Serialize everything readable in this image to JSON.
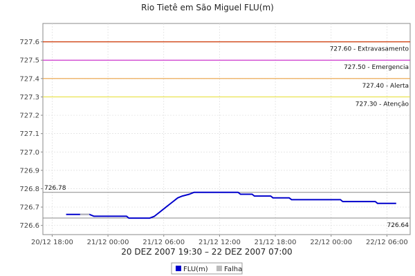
{
  "chart_data": {
    "type": "line",
    "title": "Rio Tietê em São Miguel FLU(m)",
    "xlabel": "20 DEZ 2007 19:30 – 22 DEZ 2007 07:00",
    "ylabel": "",
    "ylim": [
      726.55,
      727.7
    ],
    "xlim": [
      "2007-12-20T17:00",
      "2007-12-22T08:30"
    ],
    "x_ticks": [
      {
        "t": "2007-12-20T18:00",
        "label": "20/12 18:00"
      },
      {
        "t": "2007-12-21T00:00",
        "label": "21/12 00:00"
      },
      {
        "t": "2007-12-21T06:00",
        "label": "21/12 06:00"
      },
      {
        "t": "2007-12-21T12:00",
        "label": "21/12 12:00"
      },
      {
        "t": "2007-12-21T18:00",
        "label": "21/12 18:00"
      },
      {
        "t": "2007-12-22T00:00",
        "label": "22/12 00:00"
      },
      {
        "t": "2007-12-22T06:00",
        "label": "22/12 06:00"
      }
    ],
    "y_ticks": [
      726.6,
      726.7,
      726.8,
      726.9,
      727.0,
      727.1,
      727.2,
      727.3,
      727.4,
      727.5,
      727.6
    ],
    "y_tick_labels": [
      "726.6",
      "726.7",
      "726.8",
      "726.9",
      "727.0",
      "727.1",
      "727.2",
      "727.3",
      "727.4",
      "727.5",
      "727.6"
    ],
    "grid": true,
    "thresholds": [
      {
        "value": 727.6,
        "label": "727.60 - Extravasamento",
        "color": "#cc3300"
      },
      {
        "value": 727.5,
        "label": "727.50 - Emergencia",
        "color": "#cc33cc"
      },
      {
        "value": 727.4,
        "label": "727.40 - Alerta",
        "color": "#e8a040"
      },
      {
        "value": 727.3,
        "label": "727.30 - Atenção",
        "color": "#e8e040"
      }
    ],
    "extremes": [
      {
        "value": 726.78,
        "label": "726.78",
        "color": "#888888",
        "label_pos": "left"
      },
      {
        "value": 726.64,
        "label": "726.64",
        "color": "#888888",
        "label_pos": "right"
      }
    ],
    "series": [
      {
        "name": "FLU(m)",
        "color": "#0000cc",
        "points": [
          [
            "2007-12-20T19:30",
            726.66
          ],
          [
            "2007-12-20T21:00",
            726.66
          ],
          [
            "2007-12-20T22:00",
            726.66
          ],
          [
            "2007-12-20T22:30",
            726.65
          ],
          [
            "2007-12-21T02:00",
            726.65
          ],
          [
            "2007-12-21T02:15",
            726.64
          ],
          [
            "2007-12-21T04:30",
            726.64
          ],
          [
            "2007-12-21T05:00",
            726.65
          ],
          [
            "2007-12-21T05:30",
            726.67
          ],
          [
            "2007-12-21T06:00",
            726.69
          ],
          [
            "2007-12-21T06:30",
            726.71
          ],
          [
            "2007-12-21T07:00",
            726.73
          ],
          [
            "2007-12-21T07:30",
            726.75
          ],
          [
            "2007-12-21T08:00",
            726.76
          ],
          [
            "2007-12-21T08:45",
            726.77
          ],
          [
            "2007-12-21T09:15",
            726.78
          ],
          [
            "2007-12-21T14:00",
            726.78
          ],
          [
            "2007-12-21T14:15",
            726.77
          ],
          [
            "2007-12-21T15:30",
            726.77
          ],
          [
            "2007-12-21T15:45",
            726.76
          ],
          [
            "2007-12-21T17:30",
            726.76
          ],
          [
            "2007-12-21T17:45",
            726.75
          ],
          [
            "2007-12-21T19:30",
            726.75
          ],
          [
            "2007-12-21T19:45",
            726.74
          ],
          [
            "2007-12-22T01:00",
            726.74
          ],
          [
            "2007-12-22T01:15",
            726.73
          ],
          [
            "2007-12-22T04:45",
            726.73
          ],
          [
            "2007-12-22T05:00",
            726.72
          ],
          [
            "2007-12-22T07:00",
            726.72
          ]
        ]
      },
      {
        "name": "Falha",
        "color": "#bbbbbb",
        "points": [
          [
            "2007-12-20T21:00",
            726.66
          ],
          [
            "2007-12-20T22:00",
            726.66
          ]
        ]
      }
    ],
    "legend": {
      "position": "bottom-center",
      "items": [
        {
          "label": "FLU(m)",
          "color": "#0000cc"
        },
        {
          "label": "Falha",
          "color": "#bbbbbb"
        }
      ]
    }
  }
}
